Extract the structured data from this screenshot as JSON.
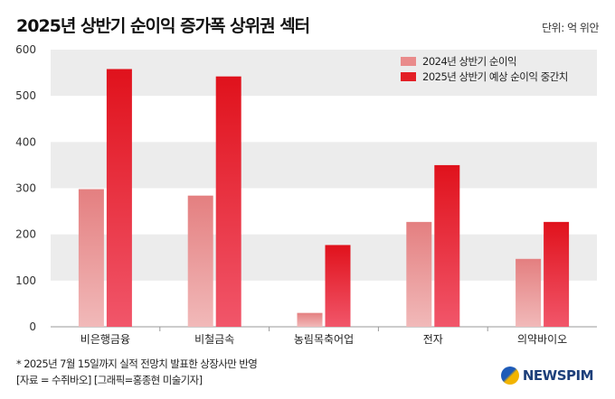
{
  "title": "2025년 상반기 순이익 증가폭 상위권 섹터",
  "unit": "단위: 억 위안",
  "notes": {
    "line1": "* 2025년 7월 15일까지 실적 전망치 발표한 상장사만 반영",
    "line2": "[자료 = 수쥐바오] [그래픽=홍종현 미술기자]"
  },
  "logo": {
    "text": "NEWSPIM",
    "icon": "newspim-logo-icon"
  },
  "colors": {
    "series1": "#e98b8b",
    "series2": "#e31f26",
    "band": "#ececec"
  },
  "chart_data": {
    "type": "bar",
    "categories": [
      "비은행금융",
      "비철금속",
      "농림목축어업",
      "전자",
      "의약바이오"
    ],
    "series": [
      {
        "name": "2024년 상반기 순이익",
        "values": [
          298,
          284,
          30,
          227,
          147
        ]
      },
      {
        "name": "2025년 상반기 예상 순이익 중간치",
        "values": [
          558,
          542,
          177,
          350,
          227
        ]
      }
    ],
    "ylim": [
      0,
      600
    ],
    "yticks": [
      0,
      100,
      200,
      300,
      400,
      500,
      600
    ],
    "grid": "alternating-bands",
    "legend": "top-right"
  }
}
